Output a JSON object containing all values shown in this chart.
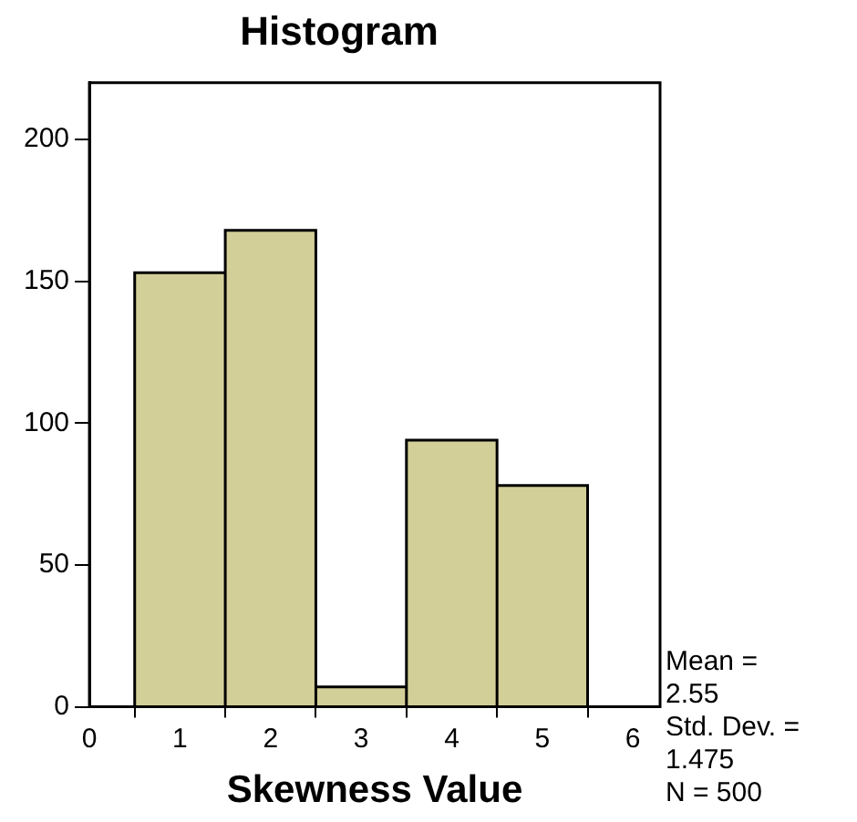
{
  "chart_data": {
    "type": "histogram",
    "title": "Histogram",
    "xlabel": "Skewness Value",
    "bins": [
      0.5,
      1.5,
      2.5,
      3.5,
      4.5,
      5.5
    ],
    "values": [
      153,
      168,
      7,
      94,
      78
    ],
    "color": "#d3cf98",
    "xlim": [
      0,
      6.3
    ],
    "xticks": [
      0,
      1,
      2,
      3,
      4,
      5,
      6
    ],
    "ylim": [
      0,
      220
    ],
    "yticks": [
      0,
      50,
      100,
      150,
      200
    ],
    "grid": false,
    "legend": false,
    "annotations": [
      "Mean =\n2.55",
      "Std. Dev. =\n1.475",
      "N = 500"
    ]
  }
}
